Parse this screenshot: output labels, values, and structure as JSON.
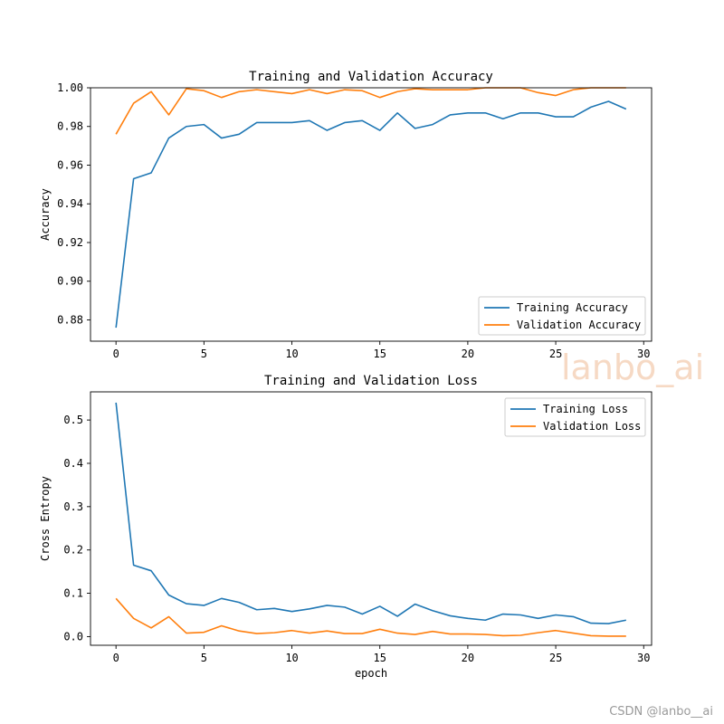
{
  "watermark_text": "lanbo_ai",
  "credit_text": "CSDN @lanbo__ai",
  "colors": {
    "training": "#1f77b4",
    "validation": "#ff7f0e"
  },
  "chart_data": [
    {
      "type": "line",
      "title": "Training and Validation Accuracy",
      "xlabel": "",
      "ylabel": "Accuracy",
      "xlim": [
        -1.45,
        30.45
      ],
      "ylim": [
        0.869,
        1.0
      ],
      "xticks": [
        0,
        5,
        10,
        15,
        20,
        25,
        30
      ],
      "yticks": [
        0.88,
        0.9,
        0.92,
        0.94,
        0.96,
        0.98,
        1.0
      ],
      "ytick_labels": [
        "0.88",
        "0.90",
        "0.92",
        "0.94",
        "0.96",
        "0.98",
        "1.00"
      ],
      "legend_position": "lower-right",
      "x": [
        0,
        1,
        2,
        3,
        4,
        5,
        6,
        7,
        8,
        9,
        10,
        11,
        12,
        13,
        14,
        15,
        16,
        17,
        18,
        19,
        20,
        21,
        22,
        23,
        24,
        25,
        26,
        27,
        28,
        29
      ],
      "series": [
        {
          "name": "Training Accuracy",
          "color": "#1f77b4",
          "values": [
            0.876,
            0.953,
            0.956,
            0.974,
            0.98,
            0.981,
            0.974,
            0.976,
            0.982,
            0.982,
            0.982,
            0.983,
            0.978,
            0.982,
            0.983,
            0.978,
            0.987,
            0.979,
            0.981,
            0.986,
            0.987,
            0.987,
            0.984,
            0.987,
            0.987,
            0.985,
            0.985,
            0.99,
            0.993,
            0.989
          ]
        },
        {
          "name": "Validation Accuracy",
          "color": "#ff7f0e",
          "values": [
            0.976,
            0.992,
            0.998,
            0.986,
            0.9995,
            0.9985,
            0.995,
            0.998,
            0.999,
            0.998,
            0.997,
            0.999,
            0.997,
            0.999,
            0.9985,
            0.995,
            0.998,
            0.9995,
            0.999,
            0.999,
            0.999,
            1.0,
            1.0,
            1.0,
            0.9975,
            0.996,
            0.999,
            1.0,
            1.0,
            1.0
          ]
        }
      ]
    },
    {
      "type": "line",
      "title": "Training and Validation Loss",
      "xlabel": "epoch",
      "ylabel": "Cross Entropy",
      "xlim": [
        -1.45,
        30.45
      ],
      "ylim": [
        -0.02,
        0.565
      ],
      "xticks": [
        0,
        5,
        10,
        15,
        20,
        25,
        30
      ],
      "yticks": [
        0.0,
        0.1,
        0.2,
        0.3,
        0.4,
        0.5
      ],
      "ytick_labels": [
        "0.0",
        "0.1",
        "0.2",
        "0.3",
        "0.4",
        "0.5"
      ],
      "legend_position": "upper-right",
      "x": [
        0,
        1,
        2,
        3,
        4,
        5,
        6,
        7,
        8,
        9,
        10,
        11,
        12,
        13,
        14,
        15,
        16,
        17,
        18,
        19,
        20,
        21,
        22,
        23,
        24,
        25,
        26,
        27,
        28,
        29
      ],
      "series": [
        {
          "name": "Training Loss",
          "color": "#1f77b4",
          "values": [
            0.54,
            0.165,
            0.152,
            0.096,
            0.076,
            0.072,
            0.088,
            0.079,
            0.062,
            0.065,
            0.058,
            0.064,
            0.072,
            0.068,
            0.052,
            0.07,
            0.047,
            0.075,
            0.06,
            0.048,
            0.042,
            0.038,
            0.052,
            0.05,
            0.042,
            0.05,
            0.046,
            0.031,
            0.03,
            0.038
          ]
        },
        {
          "name": "Validation Loss",
          "color": "#ff7f0e",
          "values": [
            0.088,
            0.042,
            0.02,
            0.046,
            0.008,
            0.01,
            0.025,
            0.013,
            0.007,
            0.009,
            0.014,
            0.008,
            0.013,
            0.007,
            0.007,
            0.017,
            0.008,
            0.005,
            0.012,
            0.006,
            0.006,
            0.005,
            0.002,
            0.003,
            0.009,
            0.014,
            0.008,
            0.002,
            0.001,
            0.001
          ]
        }
      ]
    }
  ]
}
